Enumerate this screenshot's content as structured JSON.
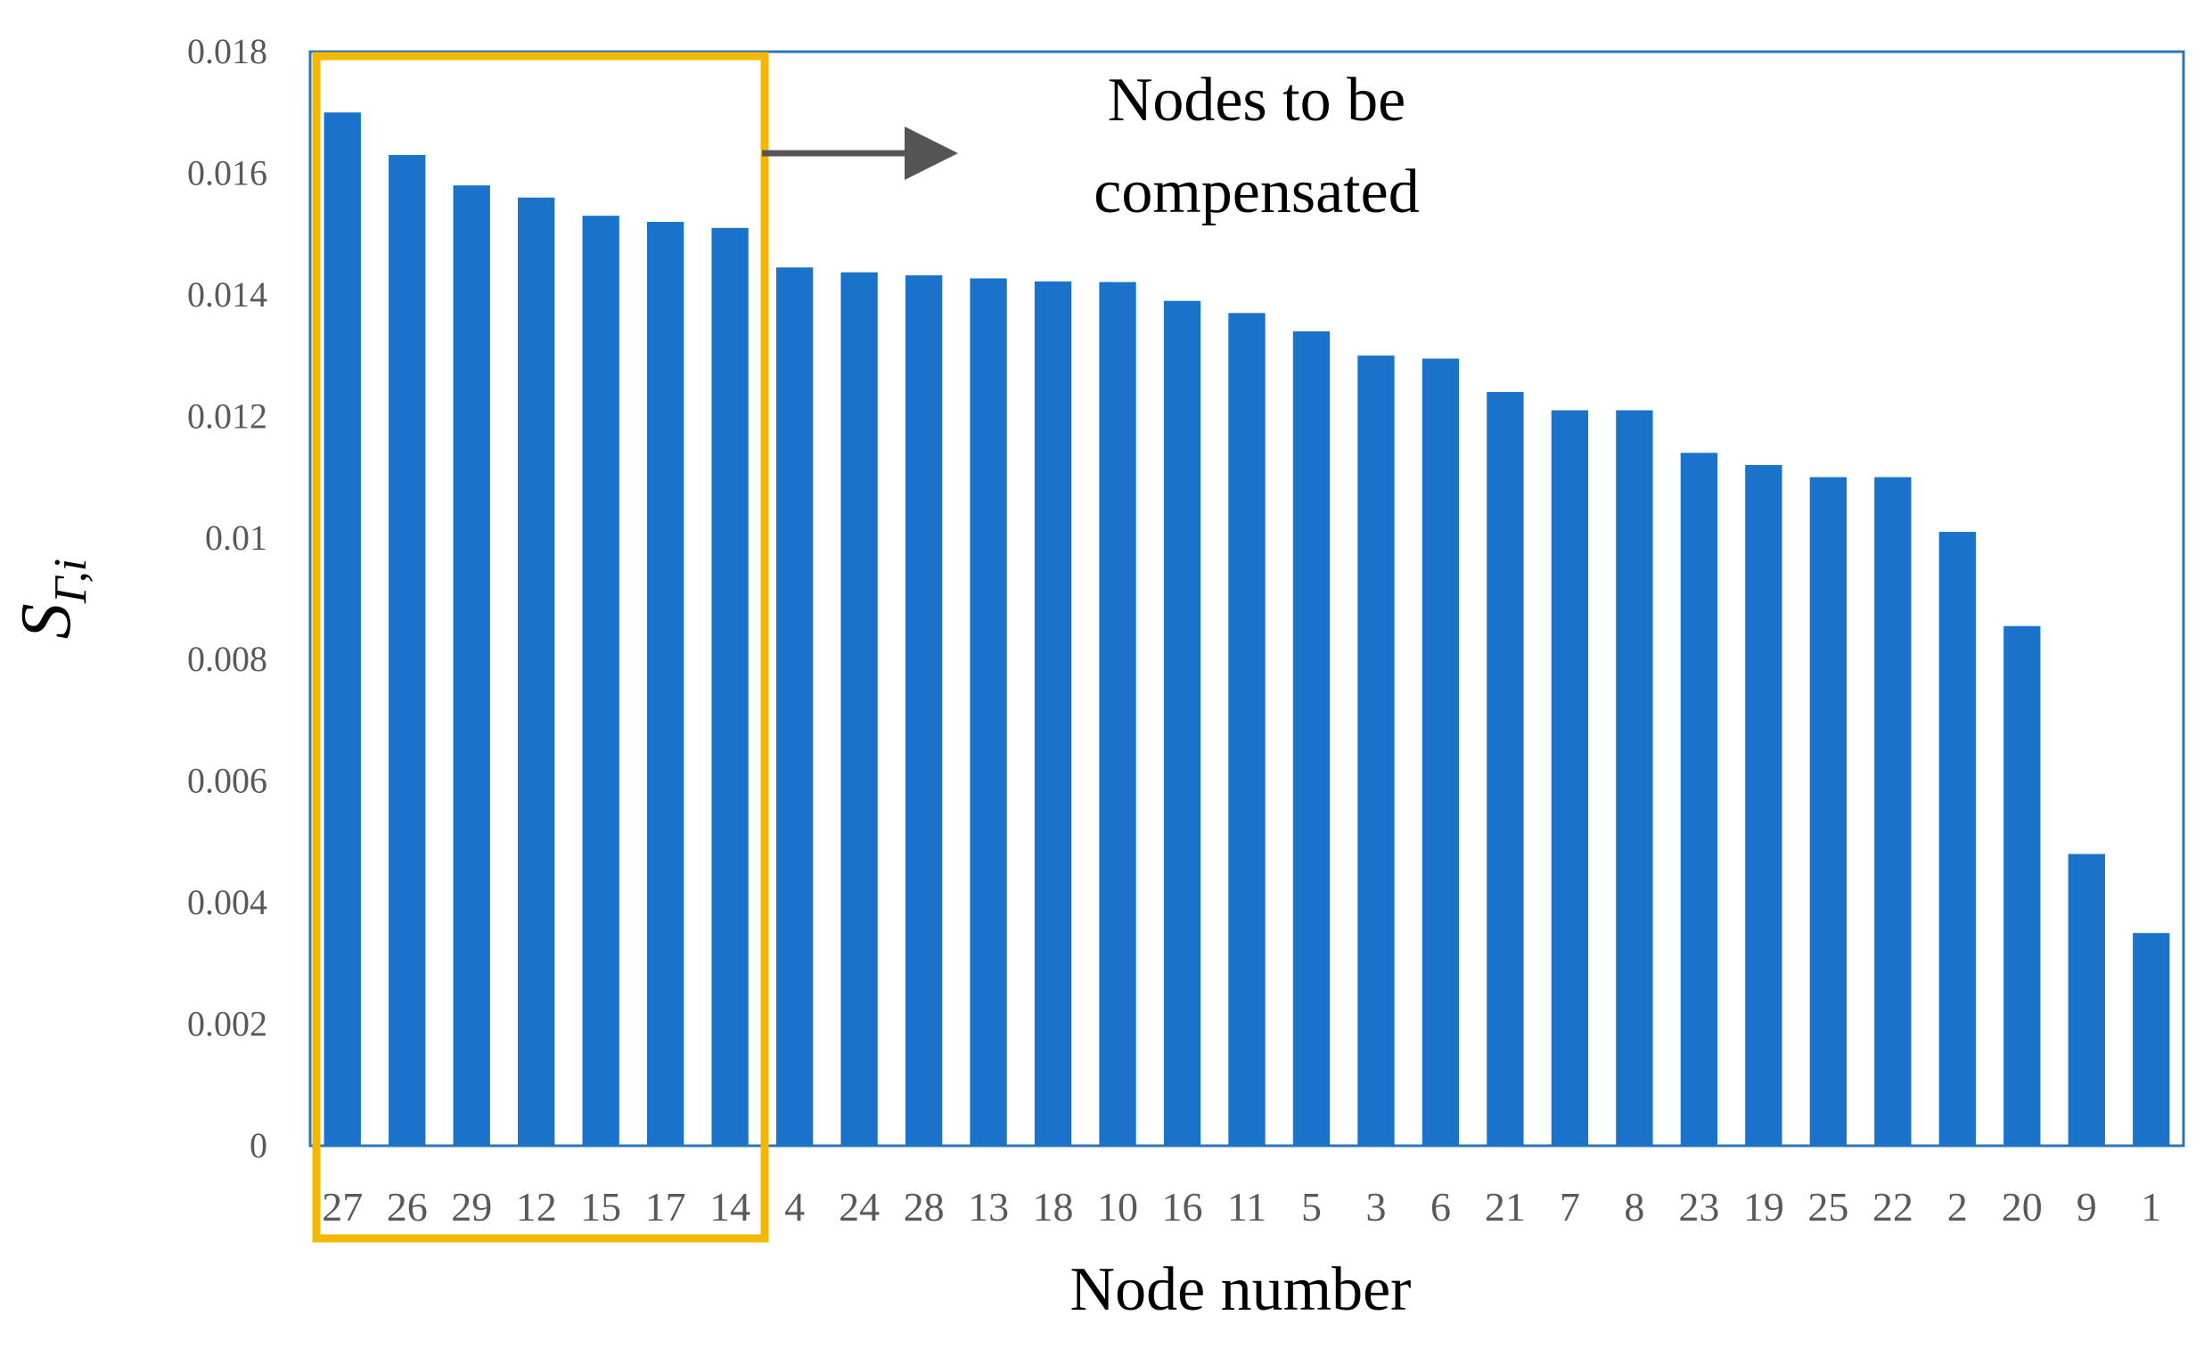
{
  "chart_data": {
    "type": "bar",
    "categories": [
      "27",
      "26",
      "29",
      "12",
      "15",
      "17",
      "14",
      "4",
      "24",
      "28",
      "13",
      "18",
      "10",
      "16",
      "11",
      "5",
      "3",
      "6",
      "21",
      "7",
      "8",
      "23",
      "19",
      "25",
      "22",
      "2",
      "20",
      "9",
      "1"
    ],
    "values": [
      0.017,
      0.0163,
      0.0158,
      0.0156,
      0.0153,
      0.0152,
      0.0151,
      0.01445,
      0.01437,
      0.01432,
      0.01427,
      0.01422,
      0.01421,
      0.0139,
      0.0137,
      0.0134,
      0.013,
      0.01295,
      0.0124,
      0.0121,
      0.0121,
      0.0114,
      0.0112,
      0.011,
      0.011,
      0.0101,
      0.00855,
      0.0048,
      0.0035
    ],
    "ylim": [
      0,
      0.018
    ],
    "yticks": [
      "0",
      "0.002",
      "0.004",
      "0.006",
      "0.008",
      "0.01",
      "0.012",
      "0.014",
      "0.016",
      "0.018"
    ],
    "xlabel": "Node number",
    "ylabel": {
      "main": "S",
      "sub": "Γ,i"
    },
    "annotation": {
      "line1": "Nodes to be",
      "line2": "compensated"
    },
    "highlight_count": 7,
    "grid": false
  },
  "colors": {
    "bar": "#1a73c8",
    "frame": "#2e75b6",
    "highlight": "#f5b800",
    "arrow": "#555555"
  }
}
